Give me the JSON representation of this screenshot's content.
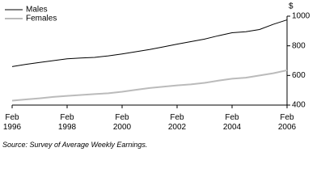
{
  "chart_data": {
    "type": "line",
    "y_label": "$",
    "source": "Source: Survey of Average Weekly Earnings.",
    "x": [
      1996,
      1996.5,
      1997,
      1997.5,
      1998,
      1998.5,
      1999,
      1999.5,
      2000,
      2000.5,
      2001,
      2001.5,
      2002,
      2002.5,
      2003,
      2003.5,
      2004,
      2004.5,
      2005,
      2005.5,
      2006
    ],
    "series": [
      {
        "name": "Males",
        "color": "#000000",
        "values": [
          660,
          675,
          688,
          700,
          712,
          718,
          722,
          732,
          745,
          760,
          775,
          793,
          811,
          828,
          845,
          868,
          888,
          895,
          910,
          945,
          975
        ]
      },
      {
        "name": "Females",
        "color": "#bbbbbb",
        "values": [
          430,
          438,
          446,
          455,
          462,
          468,
          474,
          480,
          490,
          503,
          515,
          524,
          533,
          540,
          550,
          565,
          578,
          585,
          600,
          615,
          635
        ]
      }
    ],
    "xlim": [
      1996,
      2006
    ],
    "xticks": [
      {
        "value": 1996,
        "label": "Feb 1996"
      },
      {
        "value": 1998,
        "label": "Feb 1998"
      },
      {
        "value": 2000,
        "label": "Feb 2000"
      },
      {
        "value": 2002,
        "label": "Feb 2002"
      },
      {
        "value": 2004,
        "label": "Feb 2004"
      },
      {
        "value": 2006,
        "label": "Feb 2006"
      }
    ],
    "ylim": [
      400,
      1000
    ],
    "yticks": [
      400,
      600,
      800,
      1000
    ],
    "legend": "top-left"
  }
}
